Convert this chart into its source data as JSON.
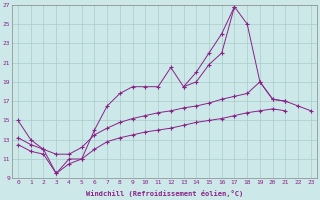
{
  "xlabel": "Windchill (Refroidissement éolien,°C)",
  "background_color": "#cde8e8",
  "grid_color": "#aacccc",
  "line_color": "#882288",
  "xlim": [
    -0.5,
    23.5
  ],
  "ylim": [
    9,
    27
  ],
  "xticks": [
    0,
    1,
    2,
    3,
    4,
    5,
    6,
    7,
    8,
    9,
    10,
    11,
    12,
    13,
    14,
    15,
    16,
    17,
    18,
    19,
    20,
    21,
    22,
    23
  ],
  "yticks": [
    9,
    11,
    13,
    15,
    17,
    19,
    21,
    23,
    25,
    27
  ],
  "line1_x": [
    0,
    1,
    2,
    3,
    4,
    5,
    6,
    7,
    8,
    9,
    10,
    11,
    12,
    13,
    14,
    15,
    16,
    17,
    18,
    19,
    20,
    21
  ],
  "line1_y": [
    15.0,
    13.0,
    12.0,
    9.5,
    11.0,
    11.0,
    14.0,
    16.5,
    17.8,
    18.5,
    18.5,
    18.5,
    20.5,
    18.5,
    19.0,
    20.8,
    22.0,
    26.8,
    25.0,
    19.0,
    17.2,
    17.0
  ],
  "line2_x": [
    13,
    14,
    15,
    16,
    17
  ],
  "line2_y": [
    18.5,
    20.0,
    22.0,
    24.0,
    26.8
  ],
  "line3_x": [
    0,
    1,
    2,
    3,
    4,
    5,
    6,
    7,
    8,
    9,
    10,
    11,
    12,
    13,
    14,
    15,
    16,
    17,
    18,
    19,
    20,
    21,
    22,
    23
  ],
  "line3_y": [
    13.2,
    12.5,
    12.0,
    11.5,
    11.5,
    12.2,
    13.5,
    14.2,
    14.8,
    15.2,
    15.5,
    15.8,
    16.0,
    16.3,
    16.5,
    16.8,
    17.2,
    17.5,
    17.8,
    19.0,
    17.2,
    17.0,
    16.5,
    16.0
  ],
  "line4_x": [
    0,
    1,
    2,
    3,
    4,
    5,
    6,
    7,
    8,
    9,
    10,
    11,
    12,
    13,
    14,
    15,
    16,
    17,
    18,
    19,
    20,
    21,
    22,
    23
  ],
  "line4_y": [
    12.5,
    11.8,
    11.5,
    9.5,
    10.5,
    11.0,
    12.0,
    12.8,
    13.2,
    13.5,
    13.8,
    14.0,
    14.2,
    14.5,
    14.8,
    15.0,
    15.2,
    15.5,
    15.8,
    16.0,
    16.2,
    16.0,
    null,
    null
  ]
}
